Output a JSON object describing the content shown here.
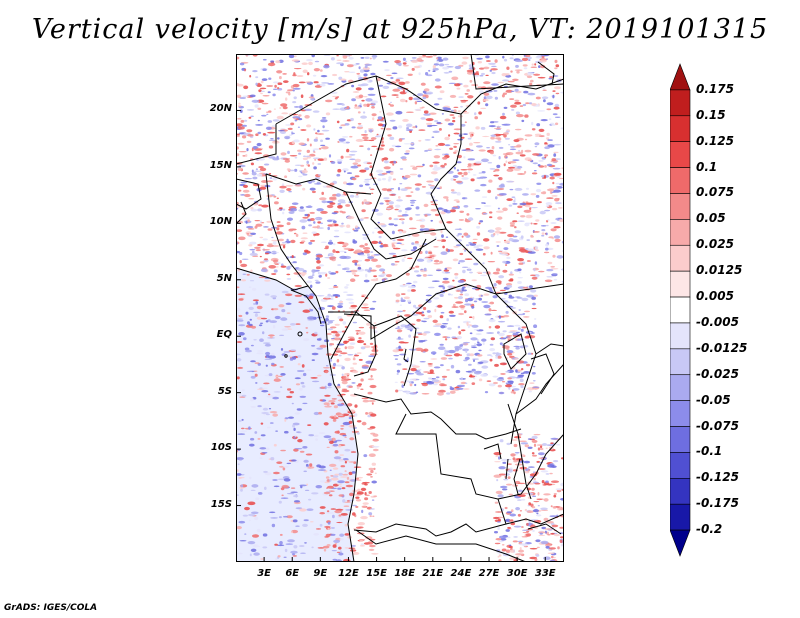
{
  "title": "Vertical velocity [m/s] at 925hPa, VT: 2019101315",
  "credit": "GrADS: IGES/COLA",
  "map": {
    "lat_ticks": [
      "20N",
      "15N",
      "10N",
      "5N",
      "EQ",
      "5S",
      "10S",
      "15S"
    ],
    "lat_values": [
      20,
      15,
      10,
      5,
      0,
      -5,
      -10,
      -15
    ],
    "lon_ticks": [
      "3E",
      "6E",
      "9E",
      "12E",
      "15E",
      "18E",
      "21E",
      "24E",
      "27E",
      "30E",
      "33E"
    ],
    "lon_values": [
      3,
      6,
      9,
      12,
      15,
      18,
      21,
      24,
      27,
      30,
      33
    ],
    "lat_range": [
      -20,
      25
    ],
    "lon_range": [
      0,
      35
    ],
    "ocean_color": "#e8ecff",
    "land_color": "#ffffff"
  },
  "colorbar": {
    "labels": [
      "0.175",
      "0.15",
      "0.125",
      "0.1",
      "0.075",
      "0.05",
      "0.025",
      "0.0125",
      "0.005",
      "-0.005",
      "-0.0125",
      "-0.025",
      "-0.05",
      "-0.075",
      "-0.1",
      "-0.125",
      "-0.175",
      "-0.2"
    ],
    "colors": [
      "#a01212",
      "#c01e1e",
      "#d83030",
      "#e84848",
      "#ef6a6a",
      "#f38a8a",
      "#f7aaaa",
      "#fbcccc",
      "#fde6e6",
      "#ffffff",
      "#e4e4fb",
      "#c8c8f6",
      "#aaaaf0",
      "#8c8ceb",
      "#6e6ee0",
      "#5050d2",
      "#3434c0",
      "#1818a8",
      "#00008c"
    ]
  }
}
